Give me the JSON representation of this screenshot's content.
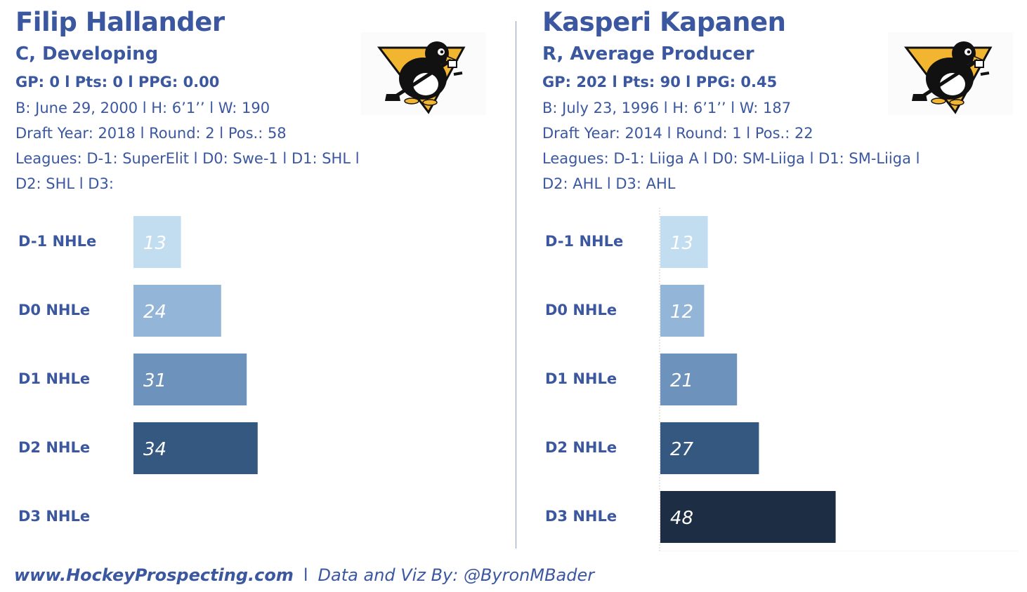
{
  "players": [
    {
      "name": "Filip Hallander",
      "position": "C, Developing",
      "stats": "GP: 0 l Pts: 0 l PPG: 0.00",
      "bio": "B: June 29, 2000 l H: 6’1’’ l W: 190",
      "draft": "Draft Year: 2018 l Round: 2 l Pos.: 58",
      "leagues_line1": "Leagues: D-1: SuperElit l D0: Swe-1 l D1: SHL l",
      "leagues_line2": "D2: SHL l D3:",
      "logo_icon": "pittsburgh-penguins-logo",
      "chart_data": {
        "type": "bar",
        "orientation": "horizontal",
        "categories": [
          "D-1 NHLe",
          "D0 NHLe",
          "D1 NHLe",
          "D2 NHLe",
          "D3 NHLe"
        ],
        "values": [
          13,
          24,
          31,
          34,
          null
        ],
        "xlim": [
          0,
          60
        ],
        "grid": false
      }
    },
    {
      "name": "Kasperi Kapanen",
      "position": "R, Average Producer",
      "stats": "GP: 202 l Pts: 90 l PPG: 0.45",
      "bio": "B: July 23, 1996 l H: 6’1’’ l W: 187",
      "draft": "Draft Year: 2014 l Round: 1 l Pos.: 22",
      "leagues_line1": "Leagues: D-1: Liiga A l D0: SM-Liiga l D1: SM-Liiga l",
      "leagues_line2": "D2: AHL l D3: AHL",
      "logo_icon": "pittsburgh-penguins-logo",
      "chart_data": {
        "type": "bar",
        "orientation": "horizontal",
        "categories": [
          "D-1 NHLe",
          "D0 NHLe",
          "D1 NHLe",
          "D2 NHLe",
          "D3 NHLe"
        ],
        "values": [
          13,
          12,
          21,
          27,
          48
        ],
        "xlim": [
          0,
          100
        ],
        "grid": false
      }
    }
  ],
  "bar_colors": [
    "#c2dcf0",
    "#92b5d8",
    "#6d92bc",
    "#34587f",
    "#1d2d44"
  ],
  "value_text_colors": [
    "#ffffff",
    "#ffffff",
    "#ffffff",
    "#ffffff",
    "#ffffff"
  ],
  "footer": {
    "site": "www.HockeyProspecting.com",
    "separator": "l",
    "credit": "Data and Viz By: @ByronMBader"
  }
}
